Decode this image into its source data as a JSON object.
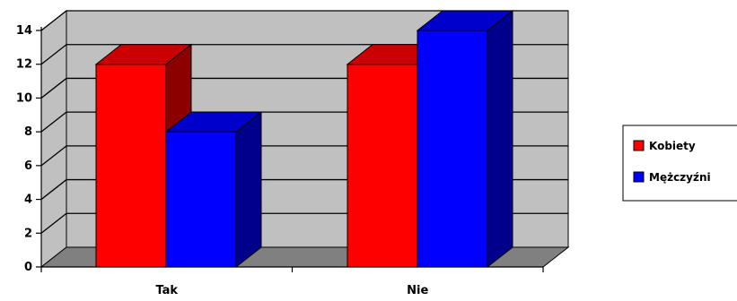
{
  "chart_data": {
    "type": "bar",
    "style": "3d-clustered-column",
    "categories": [
      "Tak",
      "Nie"
    ],
    "series": [
      {
        "name": "Kobiety",
        "values": [
          12,
          12
        ],
        "color": "#ff0000"
      },
      {
        "name": "Mężczyźni",
        "values": [
          8,
          14
        ],
        "color": "#0000ff"
      }
    ],
    "ylim": [
      0,
      14
    ],
    "yticks": [
      0,
      2,
      4,
      6,
      8,
      10,
      12,
      14
    ],
    "grid": true,
    "legend": "right",
    "colors": {
      "wall": "#c0c0c0",
      "floor": "#808080",
      "grid": "#000000"
    }
  }
}
